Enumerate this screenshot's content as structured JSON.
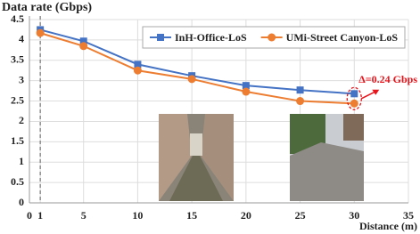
{
  "chart_data": {
    "type": "line",
    "y_label": "Data rate (Gbps)",
    "x_label": "Distance (m)",
    "x": [
      1,
      5,
      10,
      15,
      20,
      25,
      30
    ],
    "series": [
      {
        "name": "InH-Office-LoS",
        "color": "#4472c4",
        "marker": "square",
        "values": [
          4.25,
          3.97,
          3.4,
          3.12,
          2.88,
          2.77,
          2.68
        ]
      },
      {
        "name": "UMi-Street Canyon-LoS",
        "color": "#ed7d31",
        "marker": "circle",
        "values": [
          4.17,
          3.85,
          3.25,
          3.04,
          2.73,
          2.5,
          2.44
        ]
      }
    ],
    "xlim": [
      0,
      35
    ],
    "xticks": [
      0,
      1,
      5,
      10,
      15,
      20,
      25,
      30,
      35
    ],
    "ylim": [
      0,
      4.5
    ],
    "yticks": [
      0,
      0.5,
      1,
      1.5,
      2,
      2.5,
      3,
      3.5,
      4,
      4.5
    ],
    "grid": true,
    "legend": "upper right",
    "annotation": {
      "text": "Δ=0.24 Gbps",
      "color": "#e8141b"
    }
  }
}
